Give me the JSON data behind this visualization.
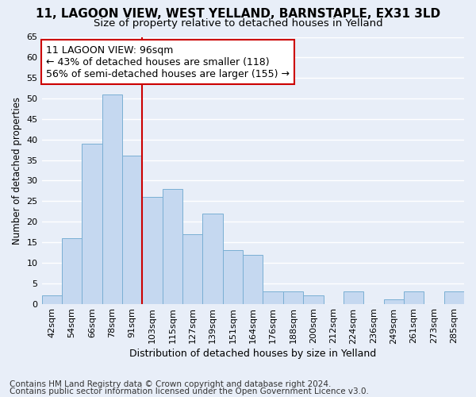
{
  "title1": "11, LAGOON VIEW, WEST YELLAND, BARNSTAPLE, EX31 3LD",
  "title2": "Size of property relative to detached houses in Yelland",
  "xlabel": "Distribution of detached houses by size in Yelland",
  "ylabel": "Number of detached properties",
  "footnote1": "Contains HM Land Registry data © Crown copyright and database right 2024.",
  "footnote2": "Contains public sector information licensed under the Open Government Licence v3.0.",
  "annotation_line1": "11 LAGOON VIEW: 96sqm",
  "annotation_line2": "← 43% of detached houses are smaller (118)",
  "annotation_line3": "56% of semi-detached houses are larger (155) →",
  "bar_labels": [
    "42sqm",
    "54sqm",
    "66sqm",
    "78sqm",
    "91sqm",
    "103sqm",
    "115sqm",
    "127sqm",
    "139sqm",
    "151sqm",
    "164sqm",
    "176sqm",
    "188sqm",
    "200sqm",
    "212sqm",
    "224sqm",
    "236sqm",
    "249sqm",
    "261sqm",
    "273sqm",
    "285sqm"
  ],
  "bar_values": [
    2,
    16,
    39,
    51,
    36,
    26,
    28,
    17,
    22,
    13,
    12,
    3,
    3,
    2,
    0,
    3,
    0,
    1,
    3,
    0,
    3
  ],
  "bar_color": "#c5d8f0",
  "bar_edge_color": "#7aafd4",
  "vline_x": 4.5,
  "vline_color": "#cc0000",
  "ylim": [
    0,
    65
  ],
  "yticks": [
    0,
    5,
    10,
    15,
    20,
    25,
    30,
    35,
    40,
    45,
    50,
    55,
    60,
    65
  ],
  "bg_color": "#e8eef8",
  "plot_bg_color": "#e8eef8",
  "grid_color": "#ffffff",
  "title1_fontsize": 11,
  "title2_fontsize": 9.5,
  "annotation_fontsize": 9,
  "annotation_box_edgecolor": "#cc0000",
  "xlabel_fontsize": 9,
  "ylabel_fontsize": 8.5,
  "tick_fontsize": 8,
  "footnote_fontsize": 7.5
}
